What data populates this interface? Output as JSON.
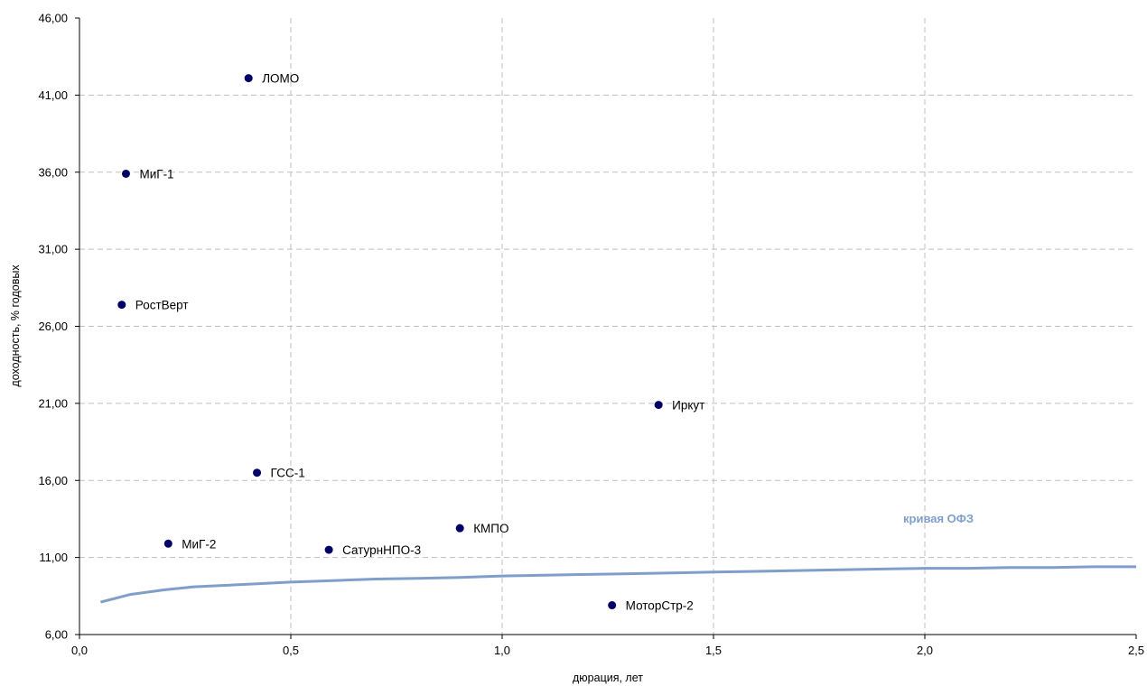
{
  "chart_data": {
    "type": "scatter",
    "xlabel": "дюрация, лет",
    "ylabel": "доходность, % годовых",
    "xlim": [
      0,
      2.5
    ],
    "ylim": [
      6,
      46
    ],
    "x_ticks": [
      {
        "value": 0,
        "label": "0,0"
      },
      {
        "value": 0.5,
        "label": "0,5"
      },
      {
        "value": 1.0,
        "label": "1,0"
      },
      {
        "value": 1.5,
        "label": "1,5"
      },
      {
        "value": 2.0,
        "label": "2,0"
      },
      {
        "value": 2.5,
        "label": "2,5"
      }
    ],
    "y_ticks": [
      {
        "value": 6,
        "label": "6,00"
      },
      {
        "value": 11,
        "label": "11,00"
      },
      {
        "value": 16,
        "label": "16,00"
      },
      {
        "value": 21,
        "label": "21,00"
      },
      {
        "value": 26,
        "label": "26,00"
      },
      {
        "value": 31,
        "label": "31,00"
      },
      {
        "value": 36,
        "label": "36,00"
      },
      {
        "value": 41,
        "label": "41,00"
      },
      {
        "value": 46,
        "label": "46,00"
      }
    ],
    "grid": true,
    "points": [
      {
        "label": "ЛОМО",
        "x": 0.4,
        "y": 42.1
      },
      {
        "label": "МиГ-1",
        "x": 0.11,
        "y": 35.9
      },
      {
        "label": "РостВерт",
        "x": 0.1,
        "y": 27.4
      },
      {
        "label": "Иркут",
        "x": 1.37,
        "y": 20.9
      },
      {
        "label": "ГСС-1",
        "x": 0.42,
        "y": 16.5
      },
      {
        "label": "КМПО",
        "x": 0.9,
        "y": 12.9
      },
      {
        "label": "МиГ-2",
        "x": 0.21,
        "y": 11.9
      },
      {
        "label": "СатурнНПО-3",
        "x": 0.59,
        "y": 11.5
      },
      {
        "label": "МоторСтр-2",
        "x": 1.26,
        "y": 7.9
      }
    ],
    "series": [
      {
        "name": "кривая ОФЗ",
        "type": "line",
        "x": [
          0.05,
          0.12,
          0.2,
          0.27,
          0.35,
          0.42,
          0.5,
          0.6,
          0.7,
          0.8,
          0.9,
          1.0,
          1.1,
          1.2,
          1.3,
          1.4,
          1.5,
          1.6,
          1.7,
          1.8,
          1.9,
          2.0,
          2.1,
          2.2,
          2.3,
          2.4,
          2.5
        ],
        "y": [
          8.1,
          8.6,
          8.9,
          9.1,
          9.2,
          9.3,
          9.4,
          9.5,
          9.6,
          9.65,
          9.7,
          9.8,
          9.85,
          9.9,
          9.95,
          10.0,
          10.05,
          10.1,
          10.15,
          10.2,
          10.25,
          10.3,
          10.3,
          10.35,
          10.35,
          10.4,
          10.4
        ]
      }
    ],
    "colors": {
      "points": "#000066",
      "curve": "#7f9fca",
      "grid": "#bfbfbf",
      "axis": "#000000"
    }
  }
}
